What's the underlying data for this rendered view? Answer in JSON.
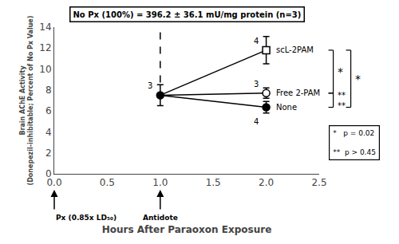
{
  "chart_data": {
    "type": "line",
    "title": "No Px (100%) = 396.2 ± 36.1 mU/mg protein (n=3)",
    "xlabel": "Hours After Paraoxon Exposure",
    "ylabel": "Brain AChE Activity\n(Donepezil-inhibitable; Percent of No Px Value)",
    "xlim": [
      0,
      2.5
    ],
    "ylim": [
      0,
      14
    ],
    "xticks": [
      {
        "value": 0,
        "label": "0.0"
      },
      0.5,
      {
        "value": 1.0,
        "label": "1.0"
      },
      1.5,
      {
        "value": 2.0,
        "label": "2.0"
      },
      2.5
    ],
    "yticks": [
      0,
      2,
      4,
      6,
      8,
      10,
      12,
      14
    ],
    "grid": false,
    "color": "black",
    "start": {
      "x": 1.0,
      "value": 7.5,
      "error": 1.0,
      "n_label": "3",
      "marker": "circle"
    },
    "series": [
      {
        "name": "scL-2PAM",
        "x": 2.0,
        "value": 11.8,
        "error": 1.3,
        "n_label": "4",
        "marker": "square-open"
      },
      {
        "name": "Free 2-PAM",
        "x": 2.0,
        "value": 7.7,
        "error": 0.5,
        "n_label": "3",
        "marker": "circle-open"
      },
      {
        "name": "None",
        "x": 2.0,
        "value": 6.35,
        "error": 0.55,
        "n_label": "4",
        "marker": "circle"
      }
    ],
    "dashed_line": {
      "x": 1.0,
      "y": [
        13.5,
        8.5
      ],
      "line_style": "dash"
    },
    "arrows": [
      {
        "x": 1.0,
        "label": "Antidote"
      },
      {
        "x": 0,
        "label": "Px (0.85x LD₅₀)"
      }
    ],
    "brackets": [
      {
        "from": "scL-2PAM",
        "to": "Free 2-PAM",
        "label": "*"
      },
      {
        "from": "scL-2PAM",
        "to": "None",
        "label": "*"
      },
      {
        "from": "Free 2-PAM",
        "to": "None",
        "label": "**\n**"
      }
    ],
    "key": "*   p = 0.02\n\n**  p > 0.45"
  }
}
